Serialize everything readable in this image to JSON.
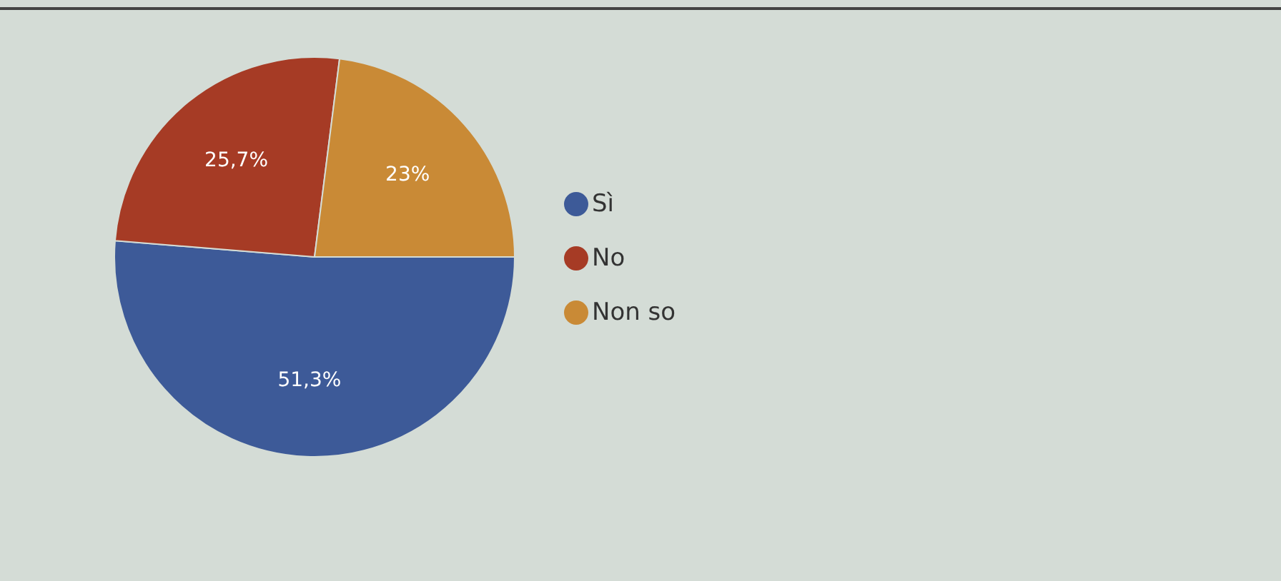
{
  "chart_data": {
    "type": "pie",
    "categories": [
      "Sì",
      "No",
      "Non so"
    ],
    "values": [
      51.3,
      25.7,
      23
    ],
    "colors": [
      "#3d5a98",
      "#a63b25",
      "#c98a36"
    ],
    "value_labels": [
      "51,3%",
      "25,7%",
      "23%"
    ],
    "legend": "right"
  }
}
